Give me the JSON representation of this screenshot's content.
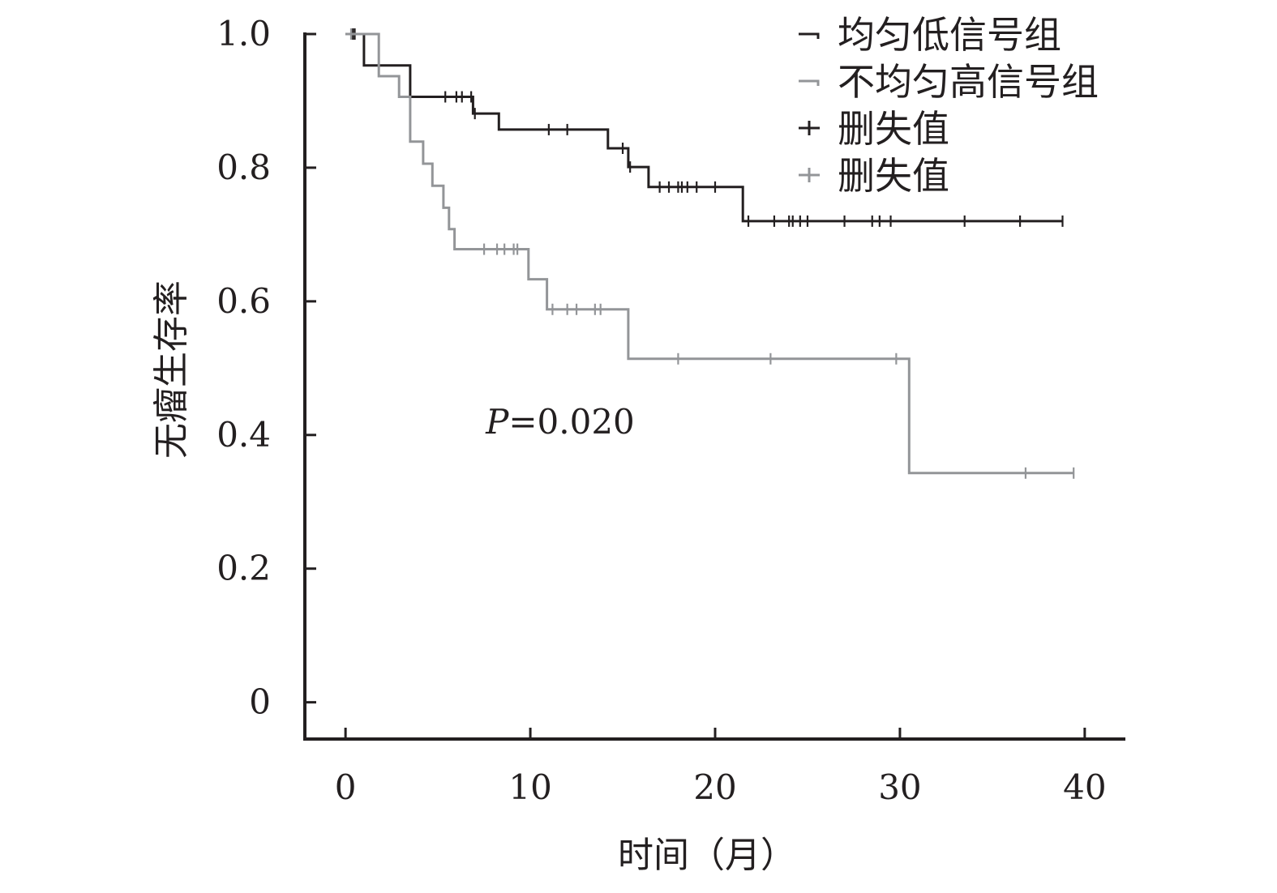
{
  "chart_data": {
    "type": "line",
    "subtype": "kaplan-meier",
    "xlabel": "时间（月）",
    "ylabel": "无瘤生存率",
    "xlim": [
      -2.2,
      42.2
    ],
    "ylim": [
      -0.055,
      1.0
    ],
    "xticks": [
      0,
      10,
      20,
      30,
      40
    ],
    "yticks": [
      0,
      0.2,
      0.4,
      0.6,
      0.8,
      1.0
    ],
    "xtick_labels": [
      "0",
      "10",
      "20",
      "30",
      "40"
    ],
    "ytick_labels": [
      "0",
      "0.2",
      "0.4",
      "0.6",
      "0.8",
      "1.0"
    ],
    "grid": false,
    "legend_position": "top-right",
    "annotation": {
      "prefix": "P",
      "text": "=0.020",
      "x": 10,
      "y": 0.4
    },
    "series": [
      {
        "name": "均匀低信号组",
        "color": "#231f20",
        "steps": [
          [
            0,
            1.0
          ],
          [
            1.0,
            0.953
          ],
          [
            3.5,
            0.906
          ],
          [
            6.9,
            0.881
          ],
          [
            8.3,
            0.857
          ],
          [
            14.2,
            0.829
          ],
          [
            15.3,
            0.801
          ],
          [
            16.4,
            0.771
          ],
          [
            21.5,
            0.72
          ],
          [
            38.8,
            0.72
          ]
        ],
        "censored": [
          [
            0.4,
            1.0
          ],
          [
            0.5,
            1.0
          ],
          [
            5.4,
            0.906
          ],
          [
            6.0,
            0.906
          ],
          [
            6.3,
            0.906
          ],
          [
            6.8,
            0.906
          ],
          [
            7.0,
            0.881
          ],
          [
            11.0,
            0.857
          ],
          [
            12.0,
            0.857
          ],
          [
            15.0,
            0.829
          ],
          [
            15.4,
            0.801
          ],
          [
            17.0,
            0.771
          ],
          [
            17.5,
            0.771
          ],
          [
            18.0,
            0.771
          ],
          [
            18.2,
            0.771
          ],
          [
            18.5,
            0.771
          ],
          [
            19.0,
            0.771
          ],
          [
            20.0,
            0.771
          ],
          [
            21.8,
            0.72
          ],
          [
            23.2,
            0.72
          ],
          [
            24.0,
            0.72
          ],
          [
            24.2,
            0.72
          ],
          [
            24.6,
            0.72
          ],
          [
            25.0,
            0.72
          ],
          [
            27.0,
            0.72
          ],
          [
            28.5,
            0.72
          ],
          [
            28.9,
            0.72
          ],
          [
            29.5,
            0.72
          ],
          [
            33.5,
            0.72
          ],
          [
            36.5,
            0.72
          ],
          [
            38.8,
            0.72
          ]
        ]
      },
      {
        "name": "不均匀高信号组",
        "color": "#939598",
        "steps": [
          [
            0,
            1.0
          ],
          [
            1.8,
            0.937
          ],
          [
            2.9,
            0.906
          ],
          [
            3.5,
            0.839
          ],
          [
            4.2,
            0.806
          ],
          [
            4.7,
            0.773
          ],
          [
            5.3,
            0.74
          ],
          [
            5.6,
            0.708
          ],
          [
            5.9,
            0.678
          ],
          [
            9.9,
            0.633
          ],
          [
            10.9,
            0.588
          ],
          [
            15.3,
            0.514
          ],
          [
            30.5,
            0.343
          ],
          [
            39.4,
            0.343
          ]
        ],
        "censored": [
          [
            0.3,
            1.0
          ],
          [
            7.5,
            0.678
          ],
          [
            8.2,
            0.678
          ],
          [
            8.6,
            0.678
          ],
          [
            9.1,
            0.678
          ],
          [
            9.3,
            0.678
          ],
          [
            11.2,
            0.588
          ],
          [
            12.0,
            0.588
          ],
          [
            12.5,
            0.588
          ],
          [
            13.5,
            0.588
          ],
          [
            13.8,
            0.588
          ],
          [
            18.0,
            0.514
          ],
          [
            23.0,
            0.514
          ],
          [
            29.8,
            0.514
          ],
          [
            36.8,
            0.343
          ],
          [
            39.4,
            0.343
          ]
        ]
      }
    ],
    "legend": [
      {
        "label": "均匀低信号组",
        "marker": "step",
        "color": "#231f20"
      },
      {
        "label": "不均匀高信号组",
        "marker": "step",
        "color": "#939598"
      },
      {
        "label": "删失值",
        "marker": "plus",
        "color": "#231f20"
      },
      {
        "label": "删失值",
        "marker": "plus",
        "color": "#939598"
      }
    ]
  }
}
